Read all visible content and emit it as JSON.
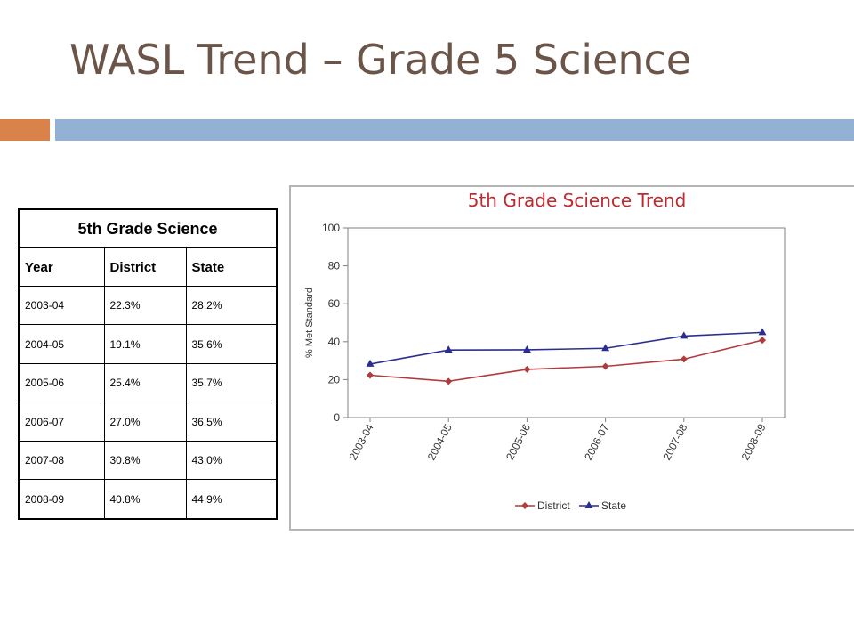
{
  "slide": {
    "title": "WASL Trend – Grade 5 Science"
  },
  "colors": {
    "title_text": "#6b5549",
    "accent_orange": "#d9824a",
    "accent_blue": "#93b2d3"
  },
  "table": {
    "title": "5th Grade Science",
    "headers": [
      "Year",
      "District",
      "State"
    ],
    "rows": [
      [
        "2003-04",
        "22.3%",
        "28.2%"
      ],
      [
        "2004-05",
        "19.1%",
        "35.6%"
      ],
      [
        "2005-06",
        "25.4%",
        "35.7%"
      ],
      [
        "2006-07",
        "27.0%",
        "36.5%"
      ],
      [
        "2007-08",
        "30.8%",
        "43.0%"
      ],
      [
        "2008-09",
        "40.8%",
        "44.9%"
      ]
    ]
  },
  "chart_data": {
    "type": "line",
    "title": "5th Grade Science Trend",
    "xlabel": "",
    "ylabel": "% Met Standard",
    "categories": [
      "2003-04",
      "2004-05",
      "2005-06",
      "2006-07",
      "2007-08",
      "2008-09"
    ],
    "ylim": [
      0,
      100
    ],
    "yticks": [
      0,
      20,
      40,
      60,
      80,
      100
    ],
    "grid": false,
    "legend_position": "bottom",
    "title_color": "#c0292e",
    "series": [
      {
        "name": "District",
        "values": [
          22.3,
          19.1,
          25.4,
          27.0,
          30.8,
          40.8
        ],
        "color": "#b23a3a",
        "marker": "diamond"
      },
      {
        "name": "State",
        "values": [
          28.2,
          35.6,
          35.7,
          36.5,
          43.0,
          44.9
        ],
        "color": "#2a2f8f",
        "marker": "triangle"
      }
    ]
  }
}
